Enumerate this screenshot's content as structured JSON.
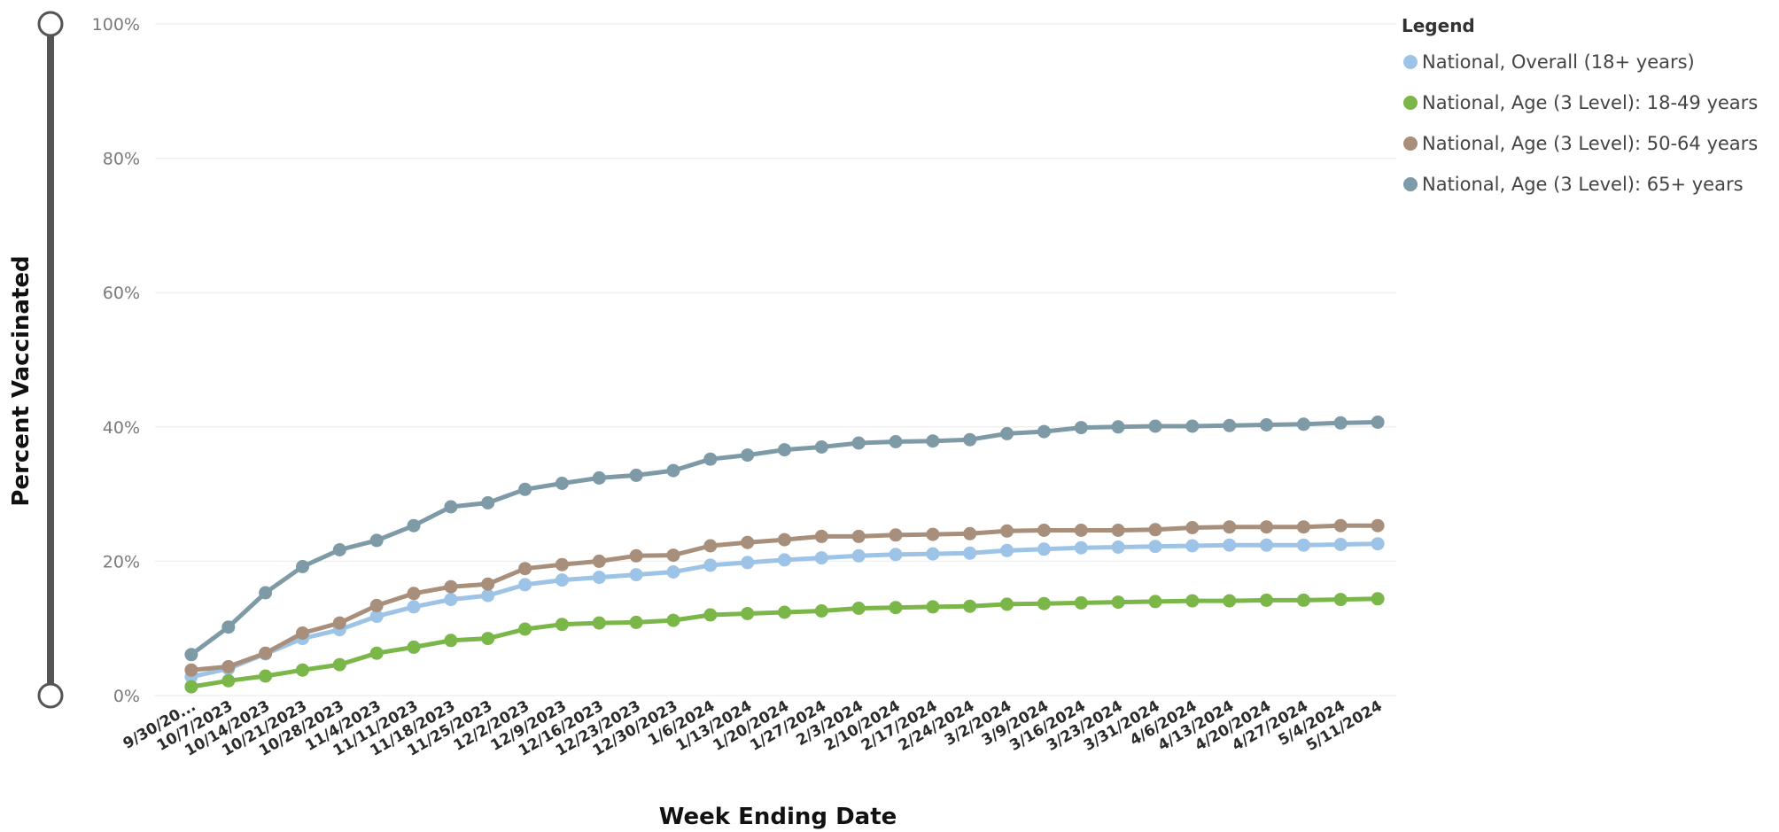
{
  "chart_data": {
    "type": "line",
    "xlabel": "Week Ending Date",
    "ylabel": "Percent Vaccinated",
    "ylim": [
      0,
      100
    ],
    "y_ticks": [
      "0%",
      "20%",
      "40%",
      "60%",
      "80%",
      "100%"
    ],
    "y_tick_values": [
      0,
      20,
      40,
      60,
      80,
      100
    ],
    "grid": true,
    "legend_title": "Legend",
    "legend_placement": "top-right",
    "categories": [
      "9/30/20...",
      "10/7/2023",
      "10/14/2023",
      "10/21/2023",
      "10/28/2023",
      "11/4/2023",
      "11/11/2023",
      "11/18/2023",
      "11/25/2023",
      "12/2/2023",
      "12/9/2023",
      "12/16/2023",
      "12/23/2023",
      "12/30/2023",
      "1/6/2024",
      "1/13/2024",
      "1/20/2024",
      "1/27/2024",
      "2/3/2024",
      "2/10/2024",
      "2/17/2024",
      "2/24/2024",
      "3/2/2024",
      "3/9/2024",
      "3/16/2024",
      "3/23/2024",
      "3/31/2024",
      "4/6/2024",
      "4/13/2024",
      "4/20/2024",
      "4/27/2024",
      "5/4/2024",
      "5/11/2024"
    ],
    "series": [
      {
        "name": "National, Overall (18+ years)",
        "color": "#9dc3e6",
        "values": [
          2.8,
          4.0,
          6.2,
          8.5,
          9.8,
          11.8,
          13.2,
          14.3,
          14.9,
          16.5,
          17.2,
          17.6,
          18.0,
          18.4,
          19.4,
          19.8,
          20.2,
          20.5,
          20.8,
          21.0,
          21.1,
          21.2,
          21.6,
          21.8,
          22.0,
          22.1,
          22.2,
          22.3,
          22.4,
          22.4,
          22.4,
          22.5,
          22.6
        ]
      },
      {
        "name": "National, Age (3 Level): 18-49 years",
        "color": "#7ab648",
        "values": [
          1.3,
          2.2,
          2.9,
          3.8,
          4.6,
          6.3,
          7.2,
          8.2,
          8.5,
          9.9,
          10.6,
          10.8,
          10.9,
          11.2,
          12.0,
          12.2,
          12.4,
          12.6,
          13.0,
          13.1,
          13.2,
          13.3,
          13.6,
          13.7,
          13.8,
          13.9,
          14.0,
          14.1,
          14.1,
          14.2,
          14.2,
          14.3,
          14.4
        ]
      },
      {
        "name": "National, Age (3 Level): 50-64 years",
        "color": "#a88f7b",
        "values": [
          3.8,
          4.3,
          6.3,
          9.3,
          10.8,
          13.4,
          15.2,
          16.2,
          16.6,
          18.9,
          19.5,
          20.0,
          20.8,
          20.9,
          22.3,
          22.8,
          23.2,
          23.7,
          23.7,
          23.9,
          24.0,
          24.1,
          24.5,
          24.6,
          24.6,
          24.6,
          24.7,
          25.0,
          25.1,
          25.1,
          25.1,
          25.3,
          25.3
        ]
      },
      {
        "name": "National, Age (3 Level): 65+ years",
        "color": "#7d9aa6",
        "values": [
          6.1,
          10.2,
          15.3,
          19.2,
          21.7,
          23.1,
          25.3,
          28.1,
          28.7,
          30.7,
          31.6,
          32.4,
          32.8,
          33.5,
          35.2,
          35.8,
          36.6,
          37.0,
          37.6,
          37.8,
          37.9,
          38.1,
          39.0,
          39.3,
          39.9,
          40.0,
          40.1,
          40.1,
          40.2,
          40.3,
          40.4,
          40.6,
          40.7
        ]
      }
    ]
  }
}
